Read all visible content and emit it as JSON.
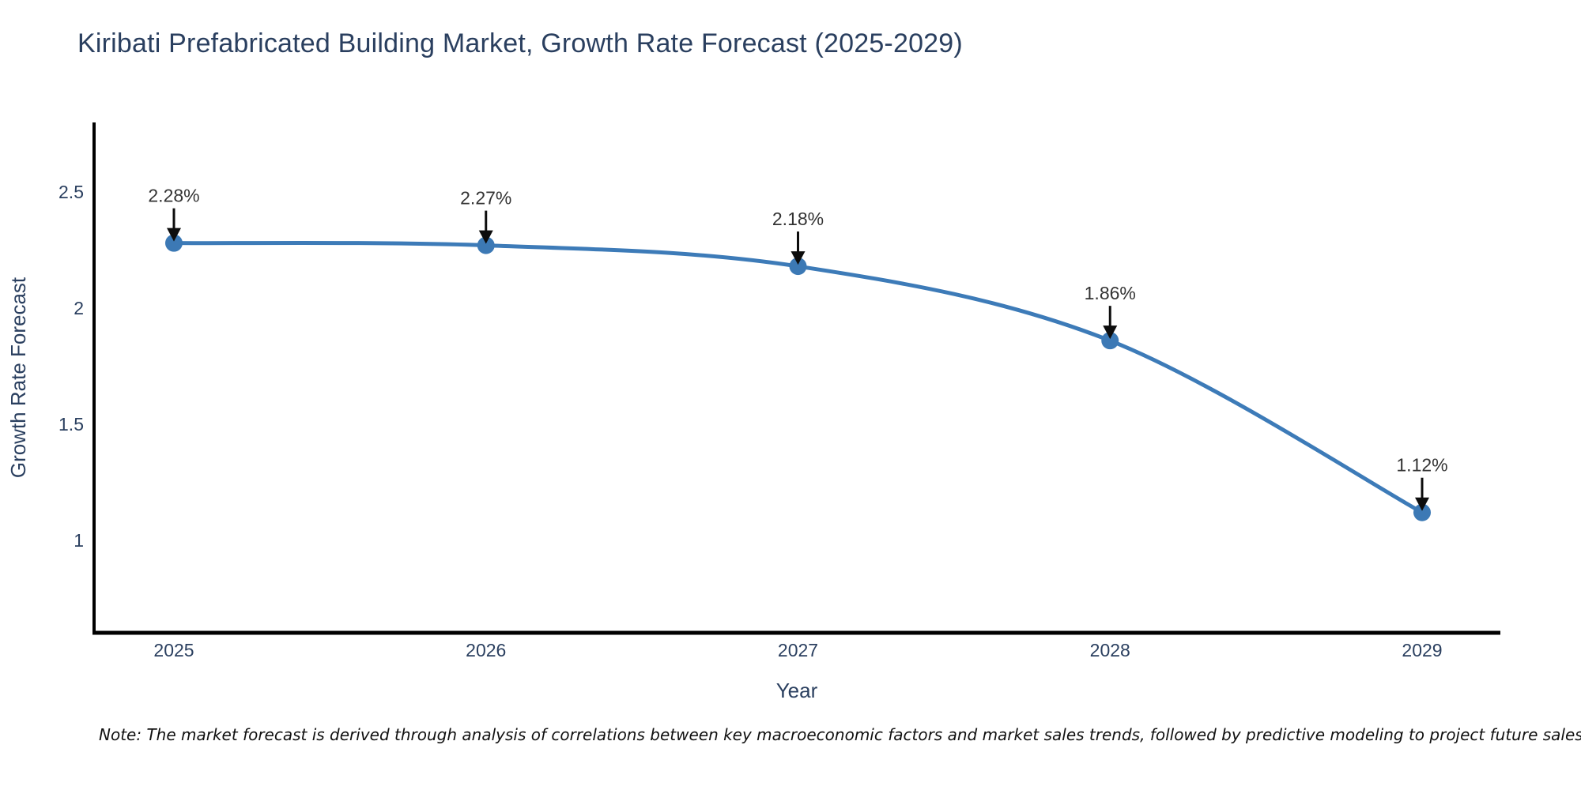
{
  "title": "Kiribati Prefabricated Building Market, Growth Rate Forecast (2025-2029)",
  "note": "Note: The market forecast is derived through analysis of correlations between key macroeconomic factors and market sales trends, followed by predictive modeling to project future sales",
  "chart_data": {
    "type": "line",
    "title": "Kiribati Prefabricated Building Market, Growth Rate Forecast (2025-2029)",
    "xlabel": "Year",
    "ylabel": "Growth Rate Forecast",
    "categories": [
      "2025",
      "2026",
      "2027",
      "2028",
      "2029"
    ],
    "values": [
      2.28,
      2.27,
      2.18,
      1.86,
      1.12
    ],
    "point_labels": [
      "2.28%",
      "2.27%",
      "2.18%",
      "1.86%",
      "1.12%"
    ],
    "yticks": [
      2.5,
      2,
      1.5,
      1
    ],
    "ylim": [
      0.6,
      2.8
    ],
    "line_shape": "spline",
    "markers": true,
    "grid": false,
    "legend_position": "none",
    "colors": {
      "line": "#3d7bb8",
      "marker": "#3c79b5",
      "axis": "#000000",
      "tick_text": "#2a3f5f",
      "annotation_text": "#333333",
      "annotation_arrow": "#0d0d0d",
      "title_text": "#2a3f5f",
      "background": "#ffffff"
    }
  }
}
